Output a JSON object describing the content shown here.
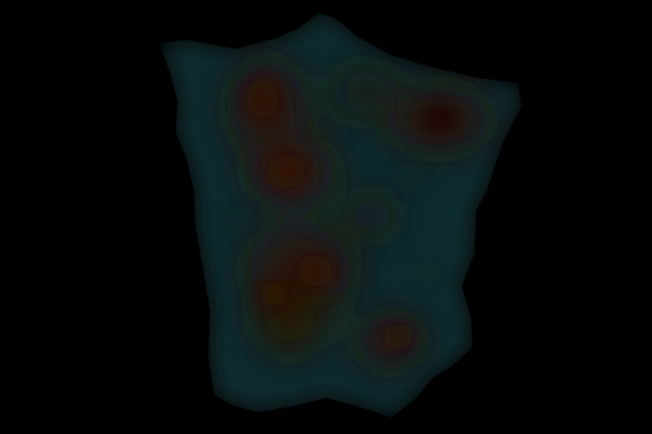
{
  "scene": {
    "background_color": "#000000",
    "region_color": "#0e2b2d",
    "hotspot_colors": [
      "#2b1208",
      "#1c2210",
      "#0b0200"
    ],
    "note_visible_text": ""
  }
}
